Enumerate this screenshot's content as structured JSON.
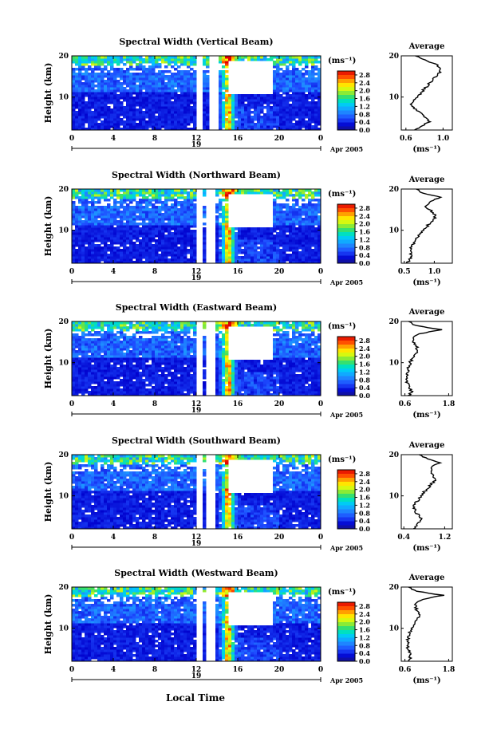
{
  "figure": {
    "xlabel": "Local Time",
    "date_label": "Apr 2005",
    "day_label": "19",
    "colorbar_unit": "(ms⁻¹)",
    "avg_unit": "(ms⁻¹)"
  },
  "chart_data": [
    {
      "type": "heatmap",
      "title": "Spectral Width (Vertical Beam)",
      "ylabel": "Height (km)",
      "x_ticks": [
        "0",
        "4",
        "8",
        "12",
        "16",
        "20",
        "0"
      ],
      "y_ticks": [
        "10",
        "20"
      ],
      "xlim": [
        0,
        24
      ],
      "ylim": [
        2,
        20
      ],
      "colorbar": {
        "ticks": [
          "2.8",
          "2.4",
          "2.0",
          "1.6",
          "1.2",
          "0.8",
          "0.4",
          "0.0"
        ],
        "range": [
          0.0,
          3.0
        ]
      },
      "average": {
        "title": "Average",
        "x_ticks": [
          "0.6",
          "1.0"
        ],
        "xlim": [
          0.55,
          1.1
        ],
        "y_ticks": [
          "10",
          "20"
        ],
        "profile": [
          [
            2,
            0.7
          ],
          [
            3,
            0.78
          ],
          [
            4,
            0.85
          ],
          [
            5,
            0.82
          ],
          [
            6,
            0.76
          ],
          [
            7,
            0.7
          ],
          [
            8,
            0.66
          ],
          [
            9,
            0.68
          ],
          [
            10,
            0.72
          ],
          [
            11,
            0.76
          ],
          [
            12,
            0.8
          ],
          [
            13,
            0.84
          ],
          [
            14,
            0.88
          ],
          [
            15,
            0.92
          ],
          [
            16,
            0.96
          ],
          [
            17,
            0.98
          ],
          [
            18,
            0.92
          ],
          [
            19,
            0.8
          ],
          [
            20,
            0.7
          ]
        ]
      }
    },
    {
      "type": "heatmap",
      "title": "Spectral Width (Northward Beam)",
      "ylabel": "Height (km)",
      "x_ticks": [
        "0",
        "4",
        "8",
        "12",
        "16",
        "20",
        "0"
      ],
      "y_ticks": [
        "10",
        "20"
      ],
      "xlim": [
        0,
        24
      ],
      "ylim": [
        2,
        20
      ],
      "colorbar": {
        "ticks": [
          "2.8",
          "2.4",
          "2.0",
          "1.6",
          "1.2",
          "0.8",
          "0.4",
          "0.0"
        ],
        "range": [
          0.0,
          3.0
        ]
      },
      "average": {
        "title": "Average",
        "x_ticks": [
          "0.5",
          "1.0"
        ],
        "xlim": [
          0.45,
          1.3
        ],
        "y_ticks": [
          "10",
          "20"
        ],
        "profile": [
          [
            2,
            0.55
          ],
          [
            3,
            0.6
          ],
          [
            4,
            0.62
          ],
          [
            5,
            0.6
          ],
          [
            6,
            0.62
          ],
          [
            7,
            0.66
          ],
          [
            8,
            0.7
          ],
          [
            9,
            0.75
          ],
          [
            10,
            0.82
          ],
          [
            11,
            0.88
          ],
          [
            12,
            0.95
          ],
          [
            13,
            1.02
          ],
          [
            14,
            1.0
          ],
          [
            15,
            0.92
          ],
          [
            16,
            0.85
          ],
          [
            17,
            0.95
          ],
          [
            18,
            1.1
          ],
          [
            19,
            0.8
          ],
          [
            20,
            0.7
          ]
        ]
      }
    },
    {
      "type": "heatmap",
      "title": "Spectral Width (Eastward Beam)",
      "ylabel": "Height (km)",
      "x_ticks": [
        "0",
        "4",
        "8",
        "12",
        "16",
        "20",
        "0"
      ],
      "y_ticks": [
        "10",
        "20"
      ],
      "xlim": [
        0,
        24
      ],
      "ylim": [
        2,
        20
      ],
      "colorbar": {
        "ticks": [
          "2.8",
          "2.4",
          "2.0",
          "1.6",
          "1.2",
          "0.8",
          "0.4",
          "0.0"
        ],
        "range": [
          0.0,
          3.0
        ]
      },
      "average": {
        "title": "Average",
        "x_ticks": [
          "0.6",
          "1.8"
        ],
        "xlim": [
          0.5,
          1.9
        ],
        "y_ticks": [
          "10",
          "20"
        ],
        "profile": [
          [
            2,
            0.7
          ],
          [
            3,
            0.8
          ],
          [
            4,
            0.72
          ],
          [
            5,
            0.66
          ],
          [
            6,
            0.64
          ],
          [
            7,
            0.66
          ],
          [
            8,
            0.68
          ],
          [
            9,
            0.7
          ],
          [
            10,
            0.74
          ],
          [
            11,
            0.8
          ],
          [
            12,
            0.9
          ],
          [
            13,
            0.96
          ],
          [
            14,
            0.92
          ],
          [
            15,
            0.85
          ],
          [
            16,
            0.8
          ],
          [
            17,
            1.0
          ],
          [
            18,
            1.6
          ],
          [
            19,
            0.9
          ],
          [
            20,
            0.7
          ]
        ]
      }
    },
    {
      "type": "heatmap",
      "title": "Spectral Width (Southward Beam)",
      "ylabel": "Height (km)",
      "x_ticks": [
        "0",
        "4",
        "8",
        "12",
        "16",
        "20",
        "0"
      ],
      "y_ticks": [
        "10",
        "20"
      ],
      "xlim": [
        0,
        24
      ],
      "ylim": [
        2,
        20
      ],
      "colorbar": {
        "ticks": [
          "2.8",
          "2.4",
          "2.0",
          "1.6",
          "1.2",
          "0.8",
          "0.4",
          "0.0"
        ],
        "range": [
          0.0,
          3.0
        ]
      },
      "average": {
        "title": "Average",
        "x_ticks": [
          "0.4",
          "1.2"
        ],
        "xlim": [
          0.35,
          1.35
        ],
        "y_ticks": [
          "10",
          "20"
        ],
        "profile": [
          [
            2,
            0.6
          ],
          [
            3,
            0.66
          ],
          [
            4,
            0.74
          ],
          [
            5,
            0.72
          ],
          [
            6,
            0.64
          ],
          [
            7,
            0.6
          ],
          [
            8,
            0.62
          ],
          [
            9,
            0.68
          ],
          [
            10,
            0.74
          ],
          [
            11,
            0.8
          ],
          [
            12,
            0.88
          ],
          [
            13,
            0.95
          ],
          [
            14,
            1.02
          ],
          [
            15,
            0.98
          ],
          [
            16,
            0.92
          ],
          [
            17,
            0.95
          ],
          [
            18,
            1.1
          ],
          [
            19,
            0.85
          ],
          [
            20,
            0.7
          ]
        ]
      }
    },
    {
      "type": "heatmap",
      "title": "Spectral Width (Westward Beam)",
      "ylabel": "Height (km)",
      "x_ticks": [
        "0",
        "4",
        "8",
        "12",
        "16",
        "20",
        "0"
      ],
      "y_ticks": [
        "10",
        "20"
      ],
      "xlim": [
        0,
        24
      ],
      "ylim": [
        2,
        20
      ],
      "colorbar": {
        "ticks": [
          "2.8",
          "2.4",
          "2.0",
          "1.6",
          "1.2",
          "0.8",
          "0.4",
          "0.0"
        ],
        "range": [
          0.0,
          3.0
        ]
      },
      "average": {
        "title": "Average",
        "x_ticks": [
          "0.6",
          "1.8"
        ],
        "xlim": [
          0.5,
          1.9
        ],
        "y_ticks": [
          "10",
          "20"
        ],
        "profile": [
          [
            2,
            0.7
          ],
          [
            3,
            0.75
          ],
          [
            4,
            0.72
          ],
          [
            5,
            0.68
          ],
          [
            6,
            0.66
          ],
          [
            7,
            0.68
          ],
          [
            8,
            0.7
          ],
          [
            9,
            0.74
          ],
          [
            10,
            0.8
          ],
          [
            11,
            0.86
          ],
          [
            12,
            0.92
          ],
          [
            13,
            0.98
          ],
          [
            14,
            0.95
          ],
          [
            15,
            0.9
          ],
          [
            16,
            0.88
          ],
          [
            17,
            1.1
          ],
          [
            18,
            1.65
          ],
          [
            19,
            0.9
          ],
          [
            20,
            0.7
          ]
        ]
      }
    }
  ],
  "colors": {
    "white_gap": "#ffffff",
    "axis": "#000000"
  }
}
